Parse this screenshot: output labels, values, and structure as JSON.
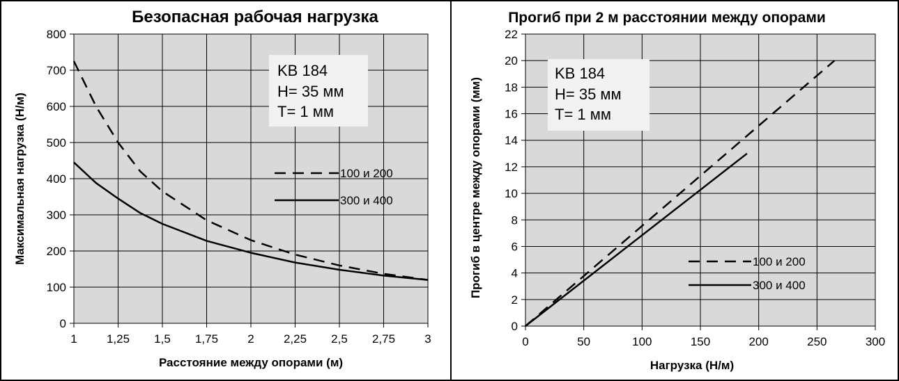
{
  "chart_data": [
    {
      "type": "line",
      "title": "Безопасная рабочая нагрузка",
      "xlabel": "Расстояние между опорами (м)",
      "ylabel": "Максимальная нагрузка (Н/м)",
      "xlim": [
        1,
        3
      ],
      "ylim": [
        0,
        800
      ],
      "xticks": [
        "1",
        "1,25",
        "1,5",
        "1,75",
        "2",
        "2,25",
        "2,5",
        "2,75",
        "3"
      ],
      "yticks": [
        "0",
        "100",
        "200",
        "300",
        "400",
        "500",
        "600",
        "700",
        "800"
      ],
      "grid": true,
      "background": "#d9d9d9",
      "annotation": [
        "KB 184",
        "H= 35 мм",
        "T= 1 мм"
      ],
      "legend_position": "right",
      "series": [
        {
          "name": "100 и 200",
          "style": "dashed",
          "x": [
            1,
            1.125,
            1.25,
            1.375,
            1.5,
            1.75,
            2,
            2.25,
            2.5,
            2.75,
            3
          ],
          "y": [
            725,
            600,
            500,
            420,
            365,
            285,
            230,
            190,
            160,
            137,
            120
          ]
        },
        {
          "name": "300 и 400",
          "style": "solid",
          "x": [
            1,
            1.125,
            1.25,
            1.375,
            1.5,
            1.75,
            2,
            2.25,
            2.5,
            2.75,
            3
          ],
          "y": [
            445,
            388,
            345,
            305,
            275,
            228,
            195,
            168,
            148,
            132,
            120
          ]
        }
      ]
    },
    {
      "type": "line",
      "title": "Прогиб при 2 м расстоянии между опорами",
      "xlabel": "Нагрузка (Н/м)",
      "ylabel": "Прогиб в центре между опорами (мм)",
      "xlim": [
        0,
        300
      ],
      "ylim": [
        0,
        22
      ],
      "xticks": [
        "0",
        "50",
        "100",
        "150",
        "200",
        "250",
        "300"
      ],
      "yticks": [
        "0",
        "2",
        "4",
        "6",
        "8",
        "10",
        "12",
        "14",
        "16",
        "18",
        "20",
        "22"
      ],
      "grid": true,
      "background": "#d9d9d9",
      "annotation": [
        "KB 184",
        "H= 35 мм",
        "T= 1 мм"
      ],
      "legend_position": "bottom-right",
      "series": [
        {
          "name": "100 и 200",
          "style": "dashed",
          "x": [
            0,
            265
          ],
          "y": [
            0,
            20
          ]
        },
        {
          "name": "300 и 400",
          "style": "solid",
          "x": [
            0,
            190
          ],
          "y": [
            0,
            13
          ]
        }
      ]
    }
  ]
}
